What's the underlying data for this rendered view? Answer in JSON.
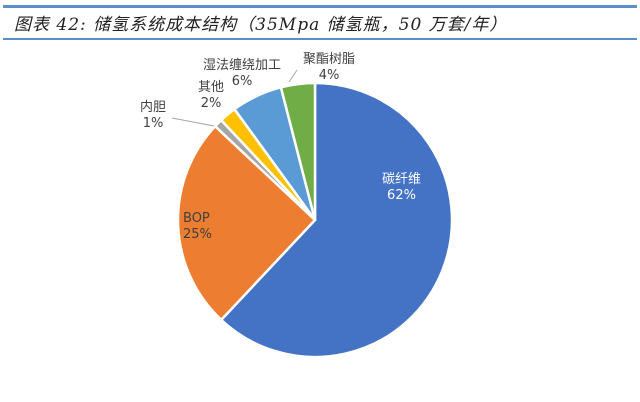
{
  "title": "图表 42: 储氢系统成本结构（35Mpa 储氢瓶，50 万套/年）",
  "chart_data": {
    "type": "pie",
    "title": "储氢系统成本结构（35Mpa 储氢瓶，50 万套/年）",
    "categories": [
      "碳纤维",
      "BOP",
      "内胆",
      "其他",
      "湿法缠绕加工",
      "聚酯树脂"
    ],
    "values": [
      62,
      25,
      1,
      2,
      6,
      4
    ],
    "labels": [
      "62%",
      "25%",
      "1%",
      "2%",
      "6%",
      "4%"
    ],
    "colors": [
      "#4472c4",
      "#ed7d31",
      "#a5a5a5",
      "#ffc000",
      "#5b9bd5",
      "#70ad47"
    ],
    "legend": "none"
  }
}
